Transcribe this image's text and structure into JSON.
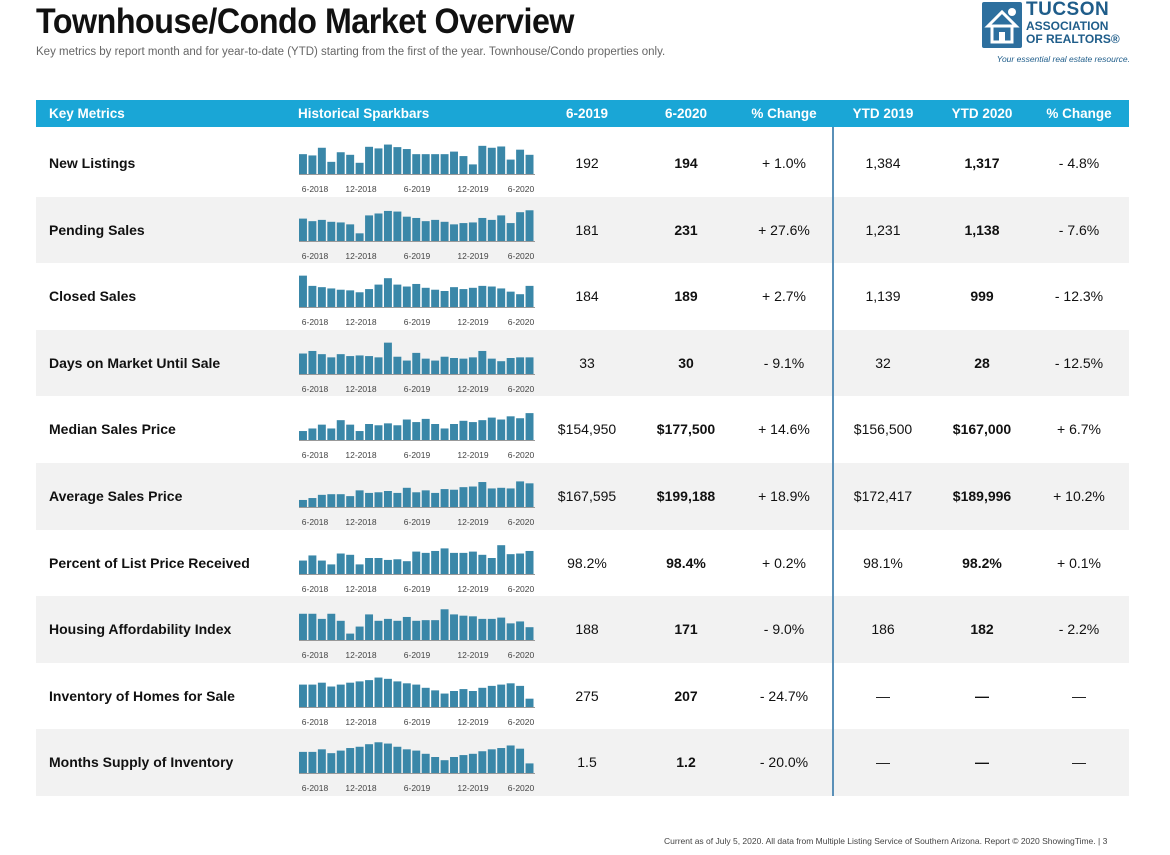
{
  "header": {
    "title": "Townhouse/Condo Market Overview",
    "subtitle": "Key metrics by report month and for year-to-date (YTD) starting from the first of the year. Townhouse/Condo properties only."
  },
  "logo": {
    "line1": "TUCSON",
    "line2": "ASSOCIATION",
    "line3": "OF REALTORS®",
    "tagline": "Your essential real estate resource."
  },
  "table": {
    "columns": {
      "metric": "Key Metrics",
      "spark": "Historical Sparkbars",
      "m2019": "6-2019",
      "m2020": "6-2020",
      "change": "% Change",
      "ytd2019": "YTD 2019",
      "ytd2020": "YTD 2020",
      "ytd_change": "% Change"
    },
    "spark_tick_labels": [
      "6-2018",
      "12-2018",
      "6-2019",
      "12-2019",
      "6-2020"
    ],
    "spark_color": "#3a87a8",
    "rows": [
      {
        "metric": "New Listings",
        "m2019": "192",
        "m2020": "194",
        "change": "+ 1.0%",
        "ytd2019": "1,384",
        "ytd2020": "1,317",
        "ytd_change": "- 4.8%",
        "bars": [
          0.62,
          0.58,
          0.82,
          0.38,
          0.68,
          0.6,
          0.35,
          0.85,
          0.8,
          0.92,
          0.84,
          0.78,
          0.62,
          0.62,
          0.62,
          0.62,
          0.7,
          0.56,
          0.3,
          0.88,
          0.82,
          0.86,
          0.45,
          0.76,
          0.6
        ]
      },
      {
        "metric": "Pending Sales",
        "m2019": "181",
        "m2020": "231",
        "change": "+ 27.6%",
        "ytd2019": "1,231",
        "ytd2020": "1,138",
        "ytd_change": "- 7.6%",
        "bars": [
          0.7,
          0.62,
          0.66,
          0.6,
          0.58,
          0.52,
          0.24,
          0.8,
          0.86,
          0.94,
          0.92,
          0.76,
          0.72,
          0.62,
          0.66,
          0.6,
          0.52,
          0.56,
          0.58,
          0.72,
          0.66,
          0.8,
          0.56,
          0.9,
          0.96
        ]
      },
      {
        "metric": "Closed Sales",
        "m2019": "184",
        "m2020": "189",
        "change": "+ 2.7%",
        "ytd2019": "1,139",
        "ytd2020": "999",
        "ytd_change": "- 12.3%",
        "bars": [
          0.98,
          0.66,
          0.62,
          0.58,
          0.54,
          0.52,
          0.46,
          0.56,
          0.7,
          0.9,
          0.7,
          0.64,
          0.72,
          0.6,
          0.54,
          0.5,
          0.62,
          0.56,
          0.6,
          0.66,
          0.64,
          0.58,
          0.48,
          0.4,
          0.66
        ]
      },
      {
        "metric": "Days on Market Until Sale",
        "m2019": "33",
        "m2020": "30",
        "change": "- 9.1%",
        "ytd2019": "32",
        "ytd2020": "28",
        "ytd_change": "- 12.5%",
        "bars": [
          0.64,
          0.72,
          0.62,
          0.52,
          0.62,
          0.56,
          0.58,
          0.56,
          0.52,
          0.98,
          0.54,
          0.42,
          0.66,
          0.48,
          0.42,
          0.54,
          0.5,
          0.48,
          0.52,
          0.72,
          0.48,
          0.4,
          0.5,
          0.52,
          0.52
        ]
      },
      {
        "metric": "Median Sales Price",
        "m2019": "$154,950",
        "m2020": "$177,500",
        "change": "+ 14.6%",
        "ytd2019": "$156,500",
        "ytd2020": "$167,000",
        "ytd_change": "+ 6.7%",
        "bars": [
          0.28,
          0.36,
          0.48,
          0.36,
          0.62,
          0.48,
          0.28,
          0.5,
          0.46,
          0.52,
          0.46,
          0.64,
          0.56,
          0.66,
          0.5,
          0.36,
          0.5,
          0.6,
          0.56,
          0.62,
          0.7,
          0.64,
          0.74,
          0.68,
          0.84
        ]
      },
      {
        "metric": "Average Sales Price",
        "m2019": "$167,595",
        "m2020": "$199,188",
        "change": "+ 18.9%",
        "ytd2019": "$172,417",
        "ytd2020": "$189,996",
        "ytd_change": "+ 10.2%",
        "bars": [
          0.22,
          0.28,
          0.38,
          0.4,
          0.4,
          0.34,
          0.52,
          0.44,
          0.46,
          0.5,
          0.44,
          0.6,
          0.46,
          0.52,
          0.44,
          0.56,
          0.54,
          0.62,
          0.64,
          0.78,
          0.58,
          0.6,
          0.58,
          0.8,
          0.74
        ]
      },
      {
        "metric": "Percent of List Price Received",
        "m2019": "98.2%",
        "m2020": "98.4%",
        "change": "+ 0.2%",
        "ytd2019": "98.1%",
        "ytd2020": "98.2%",
        "ytd_change": "+ 0.1%",
        "bars": [
          0.42,
          0.58,
          0.42,
          0.3,
          0.64,
          0.6,
          0.3,
          0.5,
          0.5,
          0.44,
          0.46,
          0.4,
          0.7,
          0.66,
          0.72,
          0.8,
          0.66,
          0.66,
          0.7,
          0.6,
          0.5,
          0.9,
          0.62,
          0.64,
          0.72
        ]
      },
      {
        "metric": "Housing Affordability Index",
        "m2019": "188",
        "m2020": "171",
        "change": "- 9.0%",
        "ytd2019": "186",
        "ytd2020": "182",
        "ytd_change": "- 2.2%",
        "bars": [
          0.82,
          0.82,
          0.66,
          0.82,
          0.6,
          0.2,
          0.42,
          0.8,
          0.6,
          0.66,
          0.6,
          0.72,
          0.6,
          0.62,
          0.62,
          0.96,
          0.8,
          0.76,
          0.74,
          0.66,
          0.66,
          0.7,
          0.52,
          0.58,
          0.4
        ]
      },
      {
        "metric": "Inventory of Homes for Sale",
        "m2019": "275",
        "m2020": "207",
        "change": "- 24.7%",
        "ytd2019": "—",
        "ytd2020": "—",
        "ytd_change": "—",
        "bars": [
          0.7,
          0.7,
          0.76,
          0.64,
          0.7,
          0.76,
          0.8,
          0.84,
          0.92,
          0.88,
          0.8,
          0.74,
          0.7,
          0.6,
          0.52,
          0.42,
          0.5,
          0.56,
          0.5,
          0.6,
          0.66,
          0.7,
          0.74,
          0.66,
          0.26
        ]
      },
      {
        "metric": "Months Supply of Inventory",
        "m2019": "1.5",
        "m2020": "1.2",
        "change": "- 20.0%",
        "ytd2019": "—",
        "ytd2020": "—",
        "ytd_change": "—",
        "bars": [
          0.66,
          0.66,
          0.74,
          0.62,
          0.7,
          0.78,
          0.82,
          0.9,
          0.96,
          0.92,
          0.82,
          0.74,
          0.7,
          0.6,
          0.5,
          0.4,
          0.5,
          0.56,
          0.6,
          0.68,
          0.74,
          0.78,
          0.86,
          0.76,
          0.3
        ]
      }
    ]
  },
  "footer": {
    "text": "Current as of July 5, 2020. All data from Multiple Listing Service of Southern Arizona. Report © 2020 ShowingTime.  |  3"
  }
}
